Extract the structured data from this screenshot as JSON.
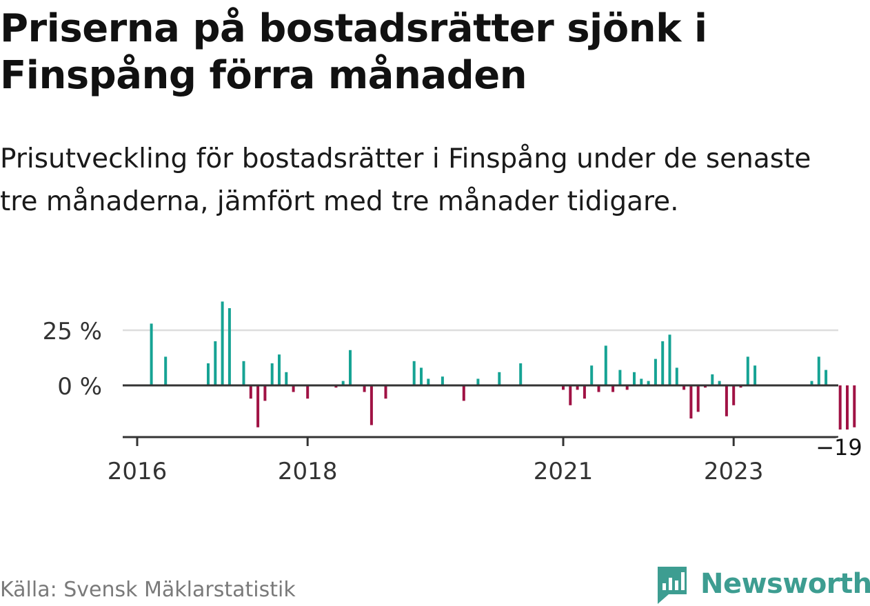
{
  "title": "Priserna på bostadsrätter sjönk i Finspång förra månaden",
  "subtitle": "Prisutveckling för bostadsrätter i Finspång under de senaste tre månaderna, jämfört med tre månader tidigare.",
  "source": "Källa: Svensk Mäklarstatistik",
  "brand": {
    "name": "Newsworthy",
    "color": "#3d9d91"
  },
  "colors": {
    "positive": "#16a394",
    "negative": "#a01244",
    "grid": "#dddddd",
    "axis": "#333333"
  },
  "chart_data": {
    "type": "bar",
    "x_unit": "month",
    "start": "2016-03",
    "values": [
      28,
      0,
      13,
      0,
      0,
      0,
      0,
      0,
      10,
      20,
      38,
      35,
      0,
      11,
      -6,
      -19,
      -7,
      10,
      14,
      6,
      -3,
      0,
      -6,
      0,
      0,
      0,
      -1,
      2,
      16,
      0,
      -3,
      -18,
      0,
      -6,
      0,
      0,
      0,
      11,
      8,
      3,
      0,
      4,
      0,
      0,
      -7,
      0,
      3,
      0,
      0,
      6,
      0,
      0,
      10,
      0,
      0,
      0,
      0,
      0,
      -2,
      -9,
      -2,
      -6,
      9,
      -3,
      18,
      -3,
      7,
      -2,
      6,
      3,
      2,
      12,
      20,
      23,
      8,
      -2,
      -15,
      -12,
      -1,
      5,
      2,
      -14,
      -9,
      -1,
      13,
      9,
      0,
      0,
      0,
      0,
      0,
      0,
      0,
      2,
      13,
      7,
      0,
      -20,
      -20,
      -19
    ],
    "y_ticks": [
      0,
      25
    ],
    "y_tick_labels": [
      "0 %",
      "25 %"
    ],
    "ylim": [
      -23,
      40
    ],
    "x_ticks": [
      {
        "date": "2016-01",
        "label": "2016"
      },
      {
        "date": "2018-01",
        "label": "2018"
      },
      {
        "date": "2021-01",
        "label": "2021"
      },
      {
        "date": "2023-01",
        "label": "2023"
      }
    ],
    "last_label": "−19 %",
    "grid": true
  }
}
